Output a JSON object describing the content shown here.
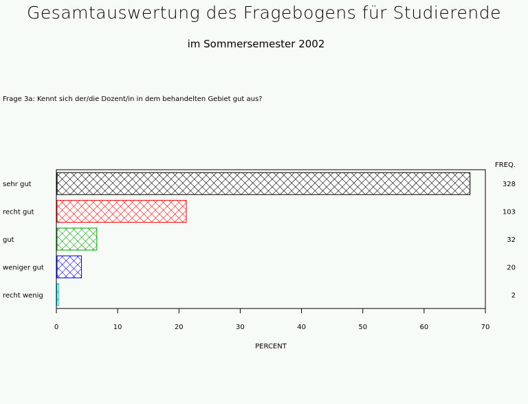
{
  "title": "Gesamtauswertung des Fragebogens für Studierende",
  "subtitle": "im Sommersemester 2002",
  "question": "Frage 3a: Kennt sich der/die  Dozent/in in dem behandelten Gebiet gut aus?",
  "chart_data": {
    "type": "bar",
    "orientation": "horizontal",
    "categories": [
      "sehr gut",
      "recht gut",
      "gut",
      "weniger gut",
      "recht wenig"
    ],
    "values": [
      67.5,
      21.2,
      6.6,
      4.1,
      0.4
    ],
    "freq": [
      "328",
      "103",
      "32",
      "20",
      "2"
    ],
    "freq_label": "FREQ.",
    "xlabel": "PERCENT",
    "xlim": [
      0,
      70
    ],
    "xticks": [
      "0",
      "10",
      "20",
      "30",
      "40",
      "50",
      "60",
      "70"
    ],
    "colors": [
      "#000000",
      "#ff0000",
      "#00a000",
      "#0000ff",
      "#00c8c8"
    ],
    "fill": "crosshatch",
    "grid": false
  }
}
